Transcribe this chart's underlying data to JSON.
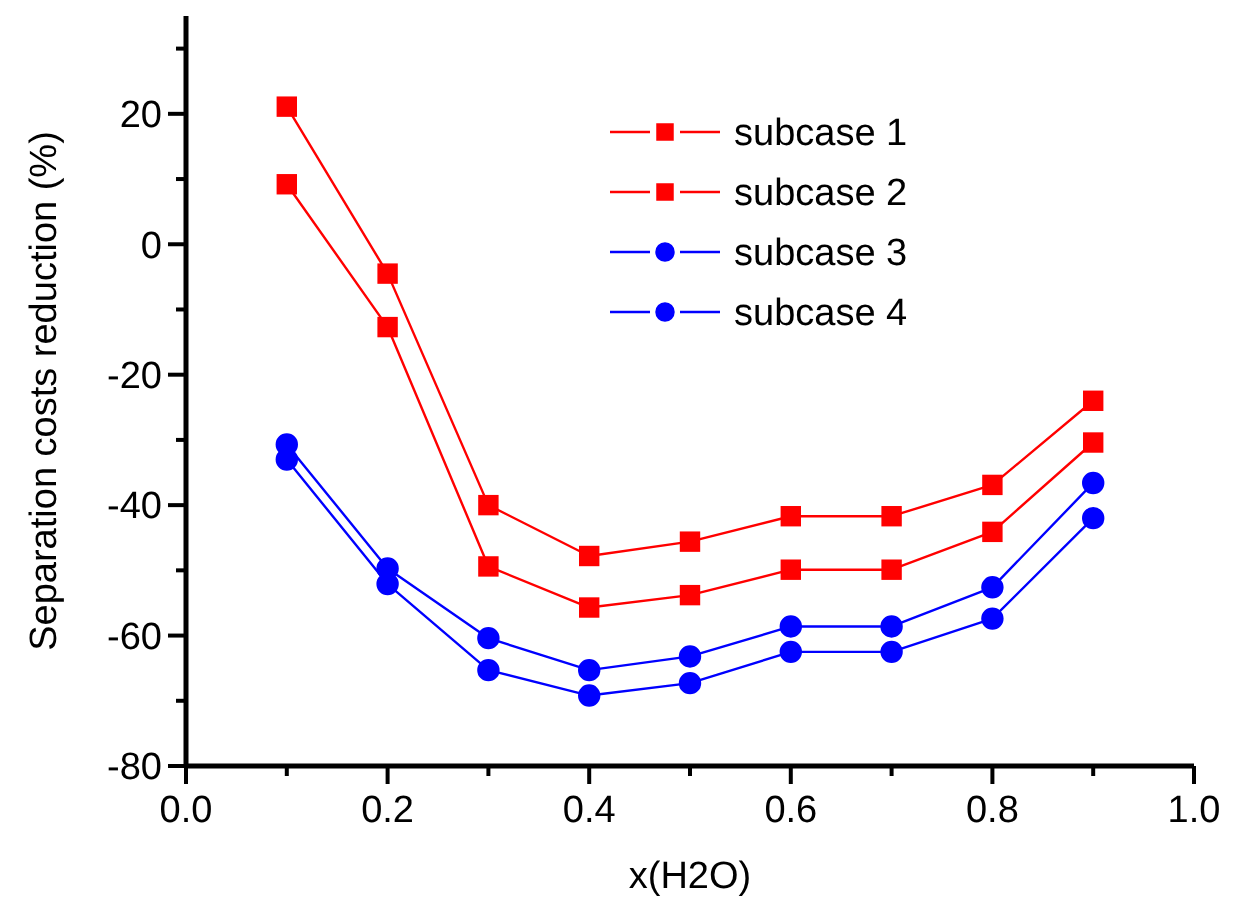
{
  "chart_data": {
    "type": "line",
    "xlabel": "x(H2O)",
    "ylabel": "Separation costs reduction (%)",
    "x": [
      0.1,
      0.2,
      0.3,
      0.4,
      0.5,
      0.6,
      0.7,
      0.8,
      0.9
    ],
    "series": [
      {
        "name": "subcase 1",
        "color": "#ff0000",
        "marker": "square",
        "values": [
          21.1,
          -4.5,
          -40,
          -47.8,
          -45.6,
          -41.7,
          -41.7,
          -36.9,
          -24.0
        ]
      },
      {
        "name": "subcase 2",
        "color": "#ff0000",
        "marker": "square",
        "values": [
          9.2,
          -12.7,
          -49.4,
          -55.7,
          -53.8,
          -49.9,
          -49.9,
          -44.1,
          -30.4
        ]
      },
      {
        "name": "subcase 3",
        "color": "#0000ff",
        "marker": "circle",
        "values": [
          -30.7,
          -49.7,
          -60.4,
          -65.3,
          -63.2,
          -58.6,
          -58.6,
          -52.6,
          -36.6
        ]
      },
      {
        "name": "subcase 4",
        "color": "#0000ff",
        "marker": "circle",
        "values": [
          -33.0,
          -52.1,
          -65.3,
          -69.2,
          -67.3,
          -62.5,
          -62.5,
          -57.4,
          -42.0
        ]
      }
    ],
    "xlim": [
      0,
      1
    ],
    "xticks": [
      {
        "value": 0,
        "label": "0.0"
      },
      {
        "value": 0.1,
        "label": null
      },
      {
        "value": 0.2,
        "label": "0.2"
      },
      {
        "value": 0.3,
        "label": null
      },
      {
        "value": 0.4,
        "label": "0.4"
      },
      {
        "value": 0.5,
        "label": null
      },
      {
        "value": 0.6,
        "label": "0.6"
      },
      {
        "value": 0.7,
        "label": null
      },
      {
        "value": 0.8,
        "label": "0.8"
      },
      {
        "value": 0.9,
        "label": null
      },
      {
        "value": 1,
        "label": "1.0"
      }
    ],
    "ylim": [
      -80,
      35
    ],
    "yticks": [
      -80,
      {
        "value": -70,
        "label": null
      },
      -60,
      {
        "value": -50,
        "label": null
      },
      -40,
      {
        "value": -30,
        "label": null
      },
      -20,
      {
        "value": -10,
        "label": null
      },
      0,
      {
        "value": 10,
        "label": null
      },
      20,
      {
        "value": 30,
        "label": null
      }
    ],
    "grid": false,
    "legend": "top",
    "line_style": "solid"
  }
}
